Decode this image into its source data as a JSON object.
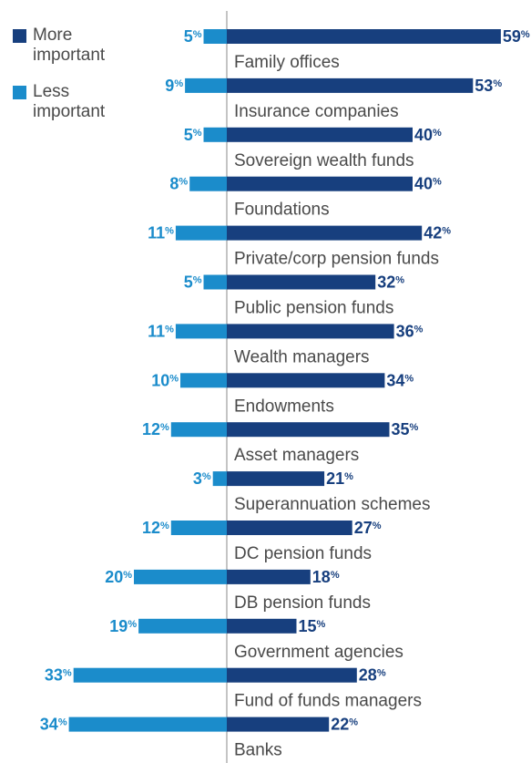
{
  "chart_data": {
    "type": "diverging-bar",
    "categories": [
      "Family offices",
      "Insurance companies",
      "Sovereign wealth funds",
      "Foundations",
      "Private/corp pension funds",
      "Public pension funds",
      "Wealth managers",
      "Endowments",
      "Asset managers",
      "Superannuation schemes",
      "DC pension funds",
      "DB pension funds",
      "Government agencies",
      "Fund of funds managers",
      "Banks"
    ],
    "series": [
      {
        "name": "More important",
        "color": "#173f7e",
        "side": "right",
        "values": [
          59,
          53,
          40,
          40,
          42,
          32,
          36,
          34,
          35,
          21,
          27,
          18,
          15,
          28,
          22
        ],
        "value_labels": [
          "59%",
          "53%",
          "40%",
          "40%",
          "42%",
          "32%",
          "36%",
          "34%",
          "35%",
          "21%",
          "27%",
          "18%",
          "15%",
          "28%",
          "22%"
        ]
      },
      {
        "name": "Less important",
        "color": "#1b8ccb",
        "side": "left",
        "values": [
          5,
          9,
          5,
          8,
          11,
          5,
          11,
          10,
          12,
          3,
          12,
          20,
          19,
          33,
          34
        ],
        "value_labels": [
          "5%",
          "9%",
          "5%",
          "8%",
          "11%",
          "5%",
          "11%",
          "10%",
          "12%",
          "3%",
          "12%",
          "20%",
          "19%",
          "33%",
          "34%"
        ]
      }
    ]
  }
}
